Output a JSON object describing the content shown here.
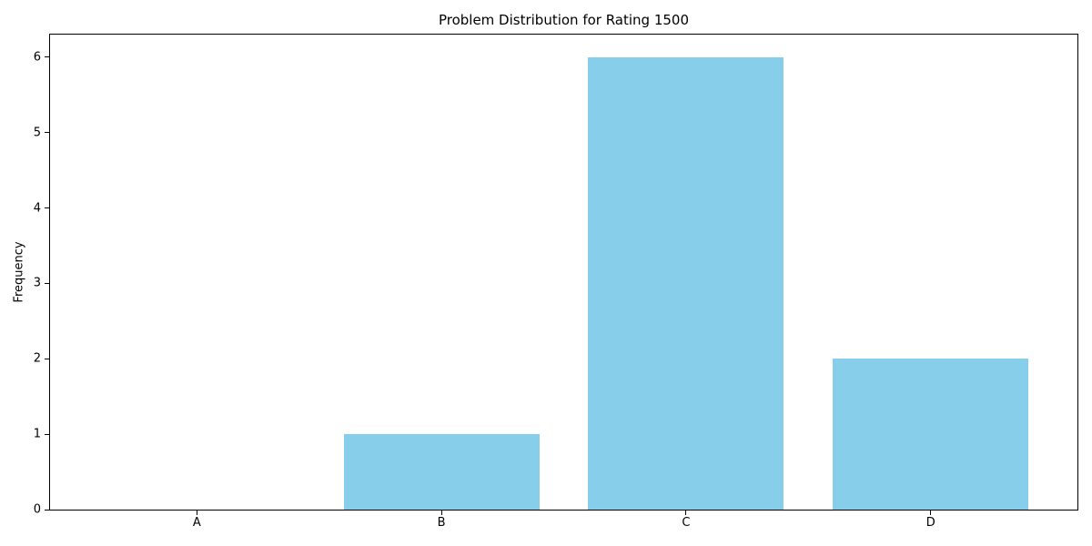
{
  "chart_data": {
    "type": "bar",
    "title": "Problem Distribution for Rating 1500",
    "categories": [
      "A",
      "B",
      "C",
      "D"
    ],
    "values": [
      0,
      1,
      6,
      2
    ],
    "xlabel": "",
    "ylabel": "Frequency",
    "yticks": [
      0,
      1,
      2,
      3,
      4,
      5,
      6
    ],
    "ylim": [
      0,
      6.3
    ],
    "xlim": [
      -0.6,
      3.6
    ],
    "bar_relative_width": 0.8,
    "bar_color": "#87ceeb",
    "axis_color": "#000000",
    "text_color": "#000000",
    "background_color": "#ffffff",
    "grid": false,
    "legend": "none"
  }
}
